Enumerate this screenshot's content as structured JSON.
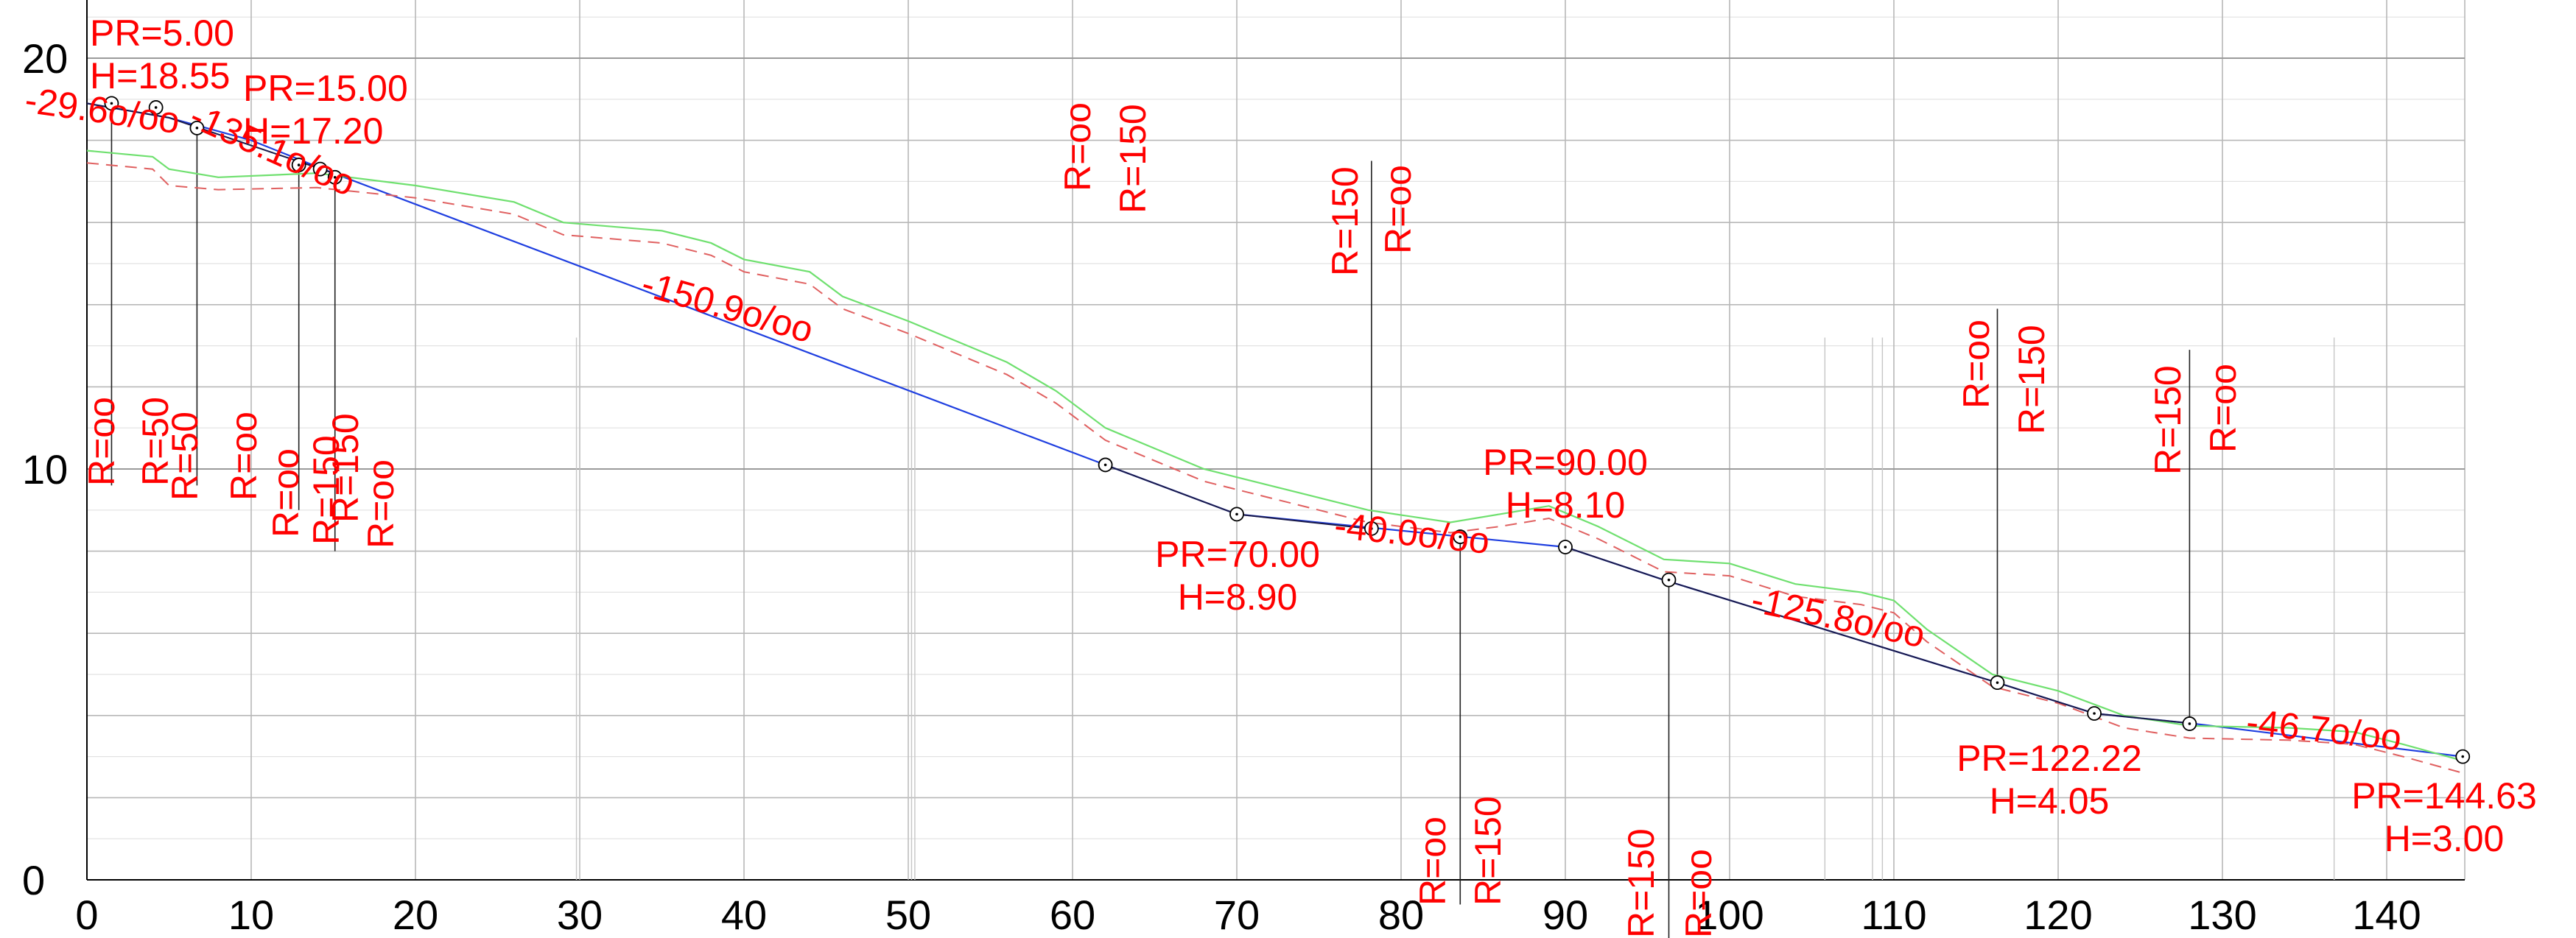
{
  "chart_data": {
    "type": "line",
    "title": "",
    "xlabel": "",
    "ylabel": "",
    "xlim": [
      0,
      145
    ],
    "ylim": [
      0,
      20
    ],
    "grid": true,
    "x_ticks": [
      "0",
      "10",
      "20",
      "30",
      "40",
      "50",
      "60",
      "70",
      "80",
      "90",
      "100",
      "110",
      "120",
      "130",
      "140"
    ],
    "y_ticks": [
      "0",
      "10",
      "20"
    ],
    "colors": {
      "grade_line": "#1f3fe0",
      "terrain": "#6fe06f",
      "terrain_offset": "#e06060",
      "labels": "#ff0000",
      "axis": "#000000",
      "grid": "#b8b8b8",
      "fine_grid": "#e2e2e2"
    },
    "series": [
      {
        "key": "grade_line",
        "values": [
          [
            0,
            18.9
          ],
          [
            5,
            18.55
          ],
          [
            10,
            18.0
          ],
          [
            15,
            17.2
          ],
          [
            62,
            10.1
          ],
          [
            70,
            8.9
          ],
          [
            90,
            8.1
          ],
          [
            96,
            7.3
          ],
          [
            116.3,
            4.8
          ],
          [
            122.2,
            4.05
          ],
          [
            128.3,
            3.8
          ],
          [
            144.63,
            3.0
          ]
        ]
      },
      {
        "key": "terrain",
        "values": [
          [
            0,
            17.75
          ],
          [
            4,
            17.6
          ],
          [
            5,
            17.3
          ],
          [
            8,
            17.1
          ],
          [
            14,
            17.2
          ],
          [
            20,
            16.9
          ],
          [
            26,
            16.5
          ],
          [
            29,
            16.0
          ],
          [
            35,
            15.8
          ],
          [
            38,
            15.5
          ],
          [
            40,
            15.1
          ],
          [
            44,
            14.8
          ],
          [
            46,
            14.2
          ],
          [
            50,
            13.6
          ],
          [
            53,
            13.1
          ],
          [
            56,
            12.6
          ],
          [
            59,
            11.9
          ],
          [
            62,
            11.0
          ],
          [
            68,
            10.0
          ],
          [
            72,
            9.6
          ],
          [
            78,
            9.0
          ],
          [
            83,
            8.7
          ],
          [
            86,
            8.9
          ],
          [
            89,
            9.1
          ],
          [
            92,
            8.6
          ],
          [
            96,
            7.8
          ],
          [
            100,
            7.7
          ],
          [
            104,
            7.2
          ],
          [
            108,
            7.0
          ],
          [
            110,
            6.8
          ],
          [
            112,
            6.1
          ],
          [
            116,
            5.0
          ],
          [
            120,
            4.6
          ],
          [
            124,
            4.0
          ],
          [
            128,
            3.75
          ],
          [
            134,
            3.7
          ],
          [
            138,
            3.6
          ],
          [
            141,
            3.3
          ],
          [
            144.63,
            2.9
          ]
        ]
      },
      {
        "key": "terrain_offset",
        "values": [
          [
            0,
            17.45
          ],
          [
            4,
            17.3
          ],
          [
            5,
            16.9
          ],
          [
            8,
            16.8
          ],
          [
            14,
            16.85
          ],
          [
            20,
            16.6
          ],
          [
            26,
            16.2
          ],
          [
            29,
            15.7
          ],
          [
            35,
            15.5
          ],
          [
            38,
            15.2
          ],
          [
            40,
            14.8
          ],
          [
            44,
            14.5
          ],
          [
            46,
            13.9
          ],
          [
            50,
            13.3
          ],
          [
            53,
            12.8
          ],
          [
            56,
            12.3
          ],
          [
            59,
            11.6
          ],
          [
            62,
            10.7
          ],
          [
            68,
            9.7
          ],
          [
            72,
            9.3
          ],
          [
            78,
            8.7
          ],
          [
            83,
            8.45
          ],
          [
            86,
            8.6
          ],
          [
            89,
            8.8
          ],
          [
            92,
            8.3
          ],
          [
            96,
            7.5
          ],
          [
            100,
            7.4
          ],
          [
            104,
            6.9
          ],
          [
            108,
            6.7
          ],
          [
            110,
            6.5
          ],
          [
            112,
            5.8
          ],
          [
            116,
            4.7
          ],
          [
            120,
            4.3
          ],
          [
            124,
            3.7
          ],
          [
            128,
            3.45
          ],
          [
            134,
            3.4
          ],
          [
            138,
            3.3
          ],
          [
            141,
            3.0
          ],
          [
            144.63,
            2.6
          ]
        ]
      }
    ],
    "vertices": [
      {
        "pr": "PR=5.00",
        "h": "H=18.55"
      },
      {
        "pr": "PR=15.00",
        "h": "H=17.20"
      },
      {
        "pr": "PR=70.00",
        "h": "H=8.90"
      },
      {
        "pr": "PR=90.00",
        "h": "H=8.10"
      },
      {
        "pr": "PR=122.22",
        "h": "H=4.05"
      },
      {
        "pr": "PR=144.63",
        "h": "H=3.00"
      }
    ],
    "grades": [
      "-29.6o/oo",
      "-135.1o/oo",
      "-150.9o/oo",
      "-40.0o/oo",
      "-125.8o/oo",
      "-46.7o/oo"
    ],
    "curve_labels": [
      "R=oo",
      "R=50",
      "R=50",
      "R=oo",
      "R=oo",
      "R=150",
      "R=150",
      "R=oo",
      "R=oo",
      "R=150",
      "R=150",
      "R=oo",
      "R=oo",
      "R=150",
      "R=150",
      "R=oo",
      "R=oo",
      "R=150",
      "R=150",
      "R=oo"
    ]
  }
}
